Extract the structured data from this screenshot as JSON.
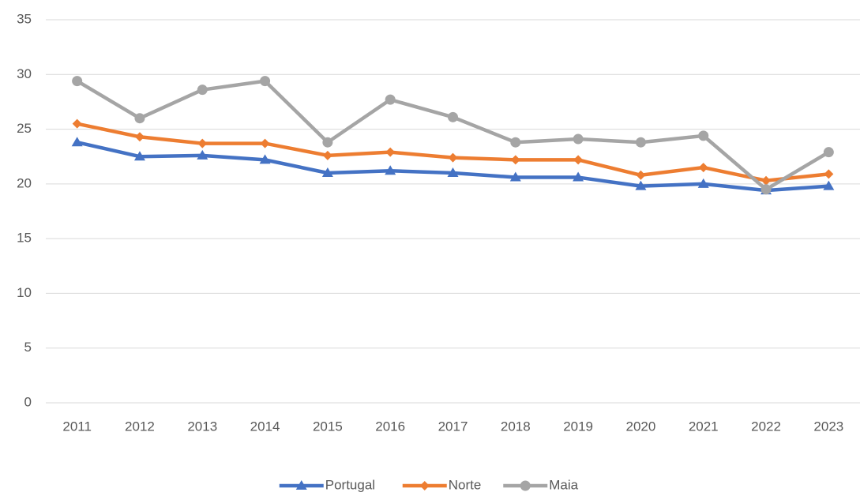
{
  "chart_data": {
    "type": "line",
    "categories": [
      "2011",
      "2012",
      "2013",
      "2014",
      "2015",
      "2016",
      "2017",
      "2018",
      "2019",
      "2020",
      "2021",
      "2022",
      "2023"
    ],
    "series": [
      {
        "name": "Portugal",
        "color": "#4472c4",
        "marker": "triangle",
        "values": [
          23.8,
          22.5,
          22.6,
          22.2,
          21.0,
          21.2,
          21.0,
          20.6,
          20.6,
          19.8,
          20.0,
          19.4,
          19.8
        ]
      },
      {
        "name": "Norte",
        "color": "#ed7d31",
        "marker": "diamond",
        "values": [
          25.5,
          24.3,
          23.7,
          23.7,
          22.6,
          22.9,
          22.4,
          22.2,
          22.2,
          20.8,
          21.5,
          20.3,
          20.9
        ]
      },
      {
        "name": "Maia",
        "color": "#a5a5a5",
        "marker": "circle",
        "values": [
          29.4,
          26.0,
          28.6,
          29.4,
          23.8,
          27.7,
          26.1,
          23.8,
          24.1,
          23.8,
          24.4,
          19.5,
          22.9
        ]
      }
    ],
    "ylim": [
      0,
      35
    ],
    "yticks": [
      0,
      5,
      10,
      15,
      20,
      25,
      30,
      35
    ],
    "grid": true,
    "legend": "bottom"
  }
}
